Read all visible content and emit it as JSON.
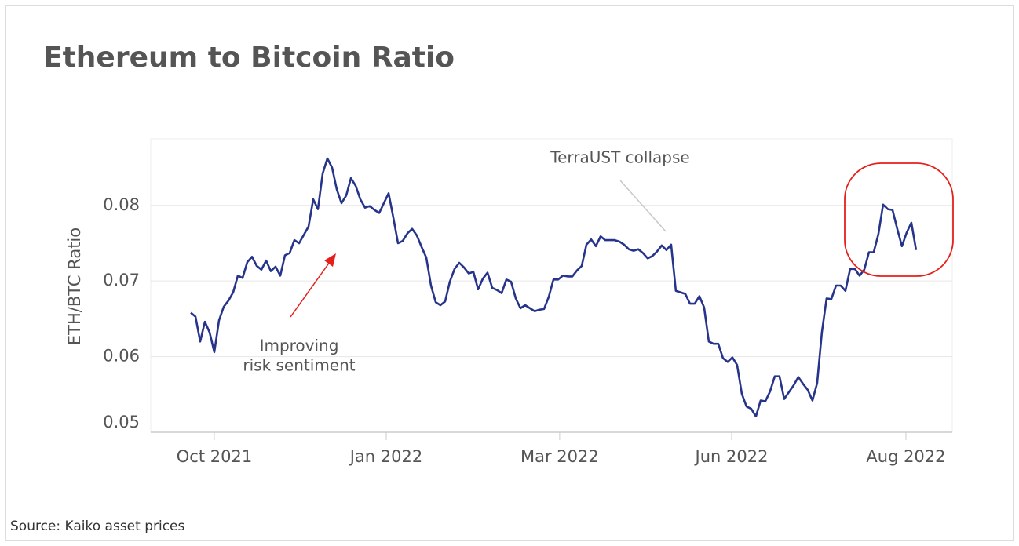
{
  "chart_data": {
    "type": "line",
    "title": "Ethereum to Bitcoin Ratio",
    "y_label": "ETH/BTC Ratio",
    "source": "Source: Kaiko asset prices",
    "annotations": [
      {
        "lines": [
          "TerraUST collapse"
        ]
      },
      {
        "lines": [
          "Improving",
          "risk sentiment"
        ]
      }
    ],
    "color": "#27348b",
    "grid": true,
    "xlim": [
      -33.75,
      391.7
    ],
    "xticks": [
      {
        "value": 0,
        "label": "Oct 2021"
      },
      {
        "value": 91.25,
        "label": "Jan 2022"
      },
      {
        "value": 183.3,
        "label": "Mar 2022"
      },
      {
        "value": 274.6,
        "label": "Jun 2022"
      },
      {
        "value": 367.1,
        "label": "Aug 2022"
      }
    ],
    "ylim": [
      0.05,
      0.089
    ],
    "yticks": [
      0.05,
      0.06,
      0.07,
      0.08
    ],
    "x": [
      -12.5,
      -10,
      -7.5,
      -5,
      -2.5,
      0,
      2.5,
      5,
      7.5,
      10,
      12.5,
      15,
      17.5,
      20,
      22.5,
      25,
      27.5,
      30,
      32.5,
      35,
      37.5,
      40,
      42.5,
      45,
      47.5,
      50,
      52.5,
      55,
      57.5,
      60,
      62.5,
      65,
      67.5,
      70,
      72.5,
      75,
      77.5,
      80,
      82.5,
      85,
      87.5,
      90,
      92.5,
      95,
      97.5,
      100,
      102.5,
      105,
      107.5,
      110,
      112.5,
      115,
      117.5,
      120,
      122.5,
      125,
      127.5,
      130,
      132.5,
      135,
      137.5,
      140,
      142.5,
      145,
      147.5,
      150,
      152.5,
      155,
      157.5,
      160,
      162.5,
      165,
      167.5,
      170,
      172.5,
      175,
      177.5,
      180,
      182.5,
      185,
      187.5,
      190,
      192.5,
      195,
      197.5,
      200,
      202.5,
      205,
      207.5,
      210,
      212.5,
      215,
      217.5,
      220,
      222.5,
      225,
      227.5,
      230,
      232.5,
      235,
      237.5,
      240,
      242.5,
      245,
      247.5,
      250,
      252.5,
      255,
      257.5,
      260,
      262.5,
      265,
      267.5,
      270,
      272.5,
      275,
      277.5,
      280,
      282.5,
      285,
      287.5,
      290,
      292.5,
      295,
      297.5,
      300,
      302.5,
      305,
      307.5,
      310,
      312.5,
      315,
      317.5,
      320,
      322.5,
      325,
      327.5,
      330,
      332.5,
      335,
      337.5,
      340,
      342.5,
      345,
      347.5,
      350,
      352.5,
      355,
      357.5,
      360,
      362.5,
      365,
      367.5,
      370,
      372.5
    ],
    "values": [
      0.0658,
      0.0653,
      0.062,
      0.0646,
      0.0632,
      0.0606,
      0.0648,
      0.0666,
      0.0674,
      0.0685,
      0.0707,
      0.0704,
      0.0725,
      0.0732,
      0.072,
      0.0715,
      0.0727,
      0.0713,
      0.0719,
      0.0707,
      0.0734,
      0.0737,
      0.0754,
      0.075,
      0.0761,
      0.0772,
      0.0808,
      0.0795,
      0.0842,
      0.0862,
      0.085,
      0.0821,
      0.0803,
      0.0813,
      0.0836,
      0.0826,
      0.0808,
      0.0797,
      0.0799,
      0.0794,
      0.079,
      0.0803,
      0.0816,
      0.0784,
      0.075,
      0.0753,
      0.0763,
      0.0769,
      0.076,
      0.0745,
      0.0731,
      0.0694,
      0.0672,
      0.0668,
      0.0673,
      0.0699,
      0.0716,
      0.0724,
      0.0718,
      0.071,
      0.0712,
      0.0689,
      0.0703,
      0.0711,
      0.0691,
      0.0688,
      0.0684,
      0.0702,
      0.0699,
      0.0677,
      0.0664,
      0.0668,
      0.0664,
      0.066,
      0.0662,
      0.0663,
      0.0679,
      0.0702,
      0.0702,
      0.0707,
      0.0706,
      0.0706,
      0.0714,
      0.072,
      0.0748,
      0.0755,
      0.0746,
      0.0759,
      0.0754,
      0.0754,
      0.0754,
      0.0752,
      0.0748,
      0.0742,
      0.074,
      0.0742,
      0.0737,
      0.073,
      0.0733,
      0.0739,
      0.0747,
      0.0741,
      0.0748,
      0.0687,
      0.0685,
      0.0683,
      0.067,
      0.067,
      0.068,
      0.0665,
      0.062,
      0.0617,
      0.0617,
      0.0598,
      0.0593,
      0.0599,
      0.0589,
      0.0551,
      0.0534,
      0.0531,
      0.0521,
      0.0542,
      0.0541,
      0.0554,
      0.0574,
      0.0574,
      0.0544,
      0.0553,
      0.0562,
      0.0573,
      0.0564,
      0.0556,
      0.0542,
      0.0565,
      0.0632,
      0.0677,
      0.0676,
      0.0694,
      0.0694,
      0.0687,
      0.0716,
      0.0716,
      0.0707,
      0.0715,
      0.0738,
      0.0738,
      0.0762,
      0.0801,
      0.0795,
      0.0794,
      0.0769,
      0.0746,
      0.0764,
      0.0777,
      0.0741
    ]
  }
}
